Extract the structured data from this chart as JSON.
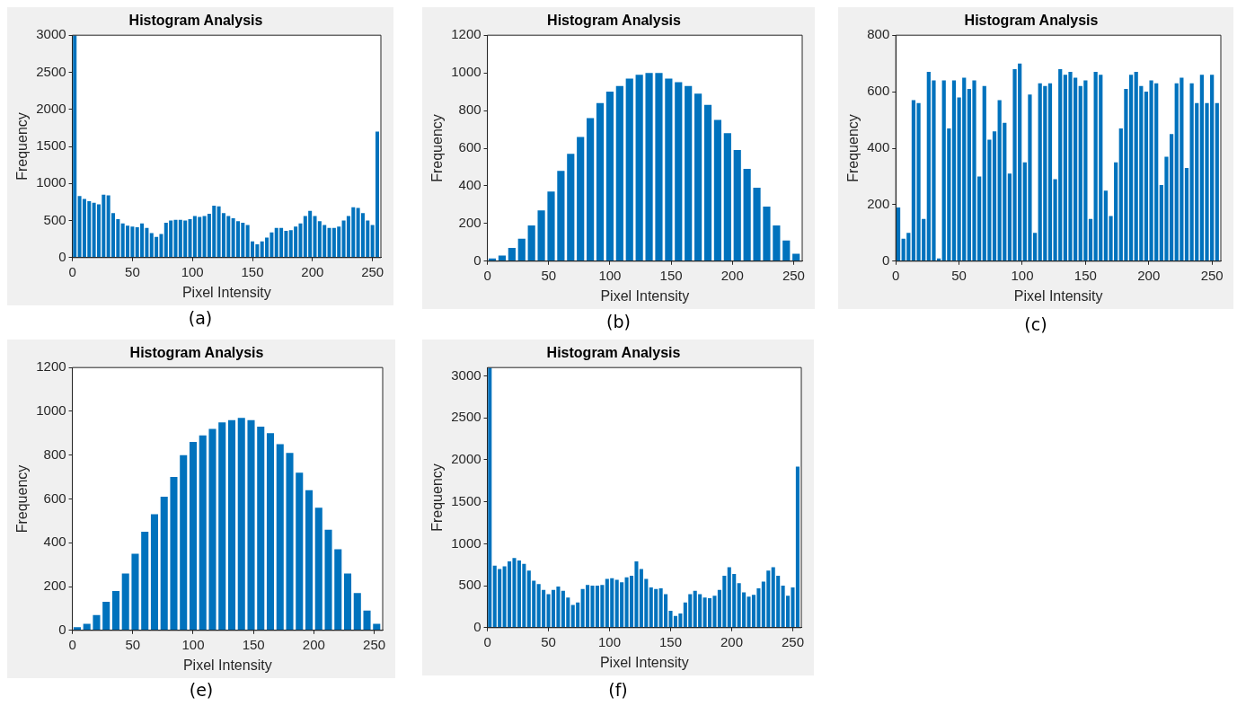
{
  "chart_data": [
    {
      "type": "histogram",
      "title": "Histogram Analysis",
      "xlabel": "Pixel Intensity",
      "ylabel": "Frequency",
      "annotations": [
        "(a)"
      ],
      "color": "#0072bd",
      "xlim": [
        0,
        257
      ],
      "ylim": [
        0,
        3000
      ],
      "xticks": [
        0,
        50,
        100,
        150,
        200,
        250
      ],
      "yticks": [
        0,
        500,
        1000,
        1500,
        2000,
        2500,
        3000
      ],
      "bins": [
        0,
        4,
        8,
        12,
        16,
        20,
        24,
        28,
        32,
        36,
        40,
        44,
        48,
        52,
        56,
        60,
        64,
        68,
        72,
        76,
        80,
        84,
        88,
        92,
        96,
        100,
        104,
        108,
        112,
        116,
        120,
        124,
        128,
        132,
        136,
        140,
        144,
        148,
        152,
        156,
        160,
        164,
        168,
        172,
        176,
        180,
        184,
        188,
        192,
        196,
        200,
        204,
        208,
        212,
        216,
        220,
        224,
        228,
        232,
        236,
        240,
        244,
        248,
        252,
        256
      ],
      "values": [
        3000,
        830,
        790,
        760,
        740,
        720,
        850,
        840,
        600,
        520,
        460,
        430,
        420,
        410,
        460,
        400,
        330,
        280,
        320,
        470,
        500,
        510,
        510,
        500,
        520,
        560,
        550,
        560,
        590,
        700,
        690,
        600,
        560,
        530,
        490,
        470,
        440,
        220,
        180,
        220,
        270,
        340,
        400,
        400,
        360,
        370,
        420,
        460,
        560,
        630,
        560,
        490,
        440,
        400,
        400,
        420,
        500,
        560,
        680,
        670,
        600,
        500,
        440,
        1700
      ]
    },
    {
      "type": "histogram",
      "title": "Histogram Analysis",
      "xlabel": "Pixel Intensity",
      "ylabel": "Frequency",
      "annotations": [
        "(b)"
      ],
      "color": "#0072bd",
      "xlim": [
        0,
        257
      ],
      "ylim": [
        0,
        1200
      ],
      "xticks": [
        0,
        50,
        100,
        150,
        200,
        250
      ],
      "yticks": [
        0,
        200,
        400,
        600,
        800,
        1000,
        1200
      ],
      "bins": [
        0,
        8,
        16,
        24,
        32,
        40,
        48,
        56,
        64,
        72,
        80,
        88,
        96,
        104,
        112,
        120,
        128,
        136,
        144,
        152,
        160,
        168,
        176,
        184,
        192,
        200,
        208,
        216,
        224,
        232,
        240,
        248,
        256
      ],
      "values": [
        15,
        30,
        70,
        120,
        190,
        270,
        370,
        480,
        570,
        660,
        760,
        840,
        900,
        930,
        970,
        990,
        1000,
        1000,
        970,
        950,
        930,
        890,
        830,
        750,
        680,
        590,
        490,
        390,
        290,
        190,
        110,
        40
      ]
    },
    {
      "type": "histogram",
      "title": "Histogram Analysis",
      "xlabel": "Pixel Intensity",
      "ylabel": "Frequency",
      "annotations": [
        "(c)"
      ],
      "color": "#0072bd",
      "xlim": [
        0,
        257
      ],
      "ylim": [
        0,
        800
      ],
      "xticks": [
        0,
        50,
        100,
        150,
        200,
        250
      ],
      "yticks": [
        0,
        200,
        400,
        600,
        800
      ],
      "bins": [
        0,
        4,
        8,
        12,
        16,
        20,
        24,
        28,
        32,
        36,
        40,
        44,
        48,
        52,
        56,
        60,
        64,
        68,
        72,
        76,
        80,
        84,
        88,
        92,
        96,
        100,
        104,
        108,
        112,
        116,
        120,
        124,
        128,
        132,
        136,
        140,
        144,
        148,
        152,
        156,
        160,
        164,
        168,
        172,
        176,
        180,
        184,
        188,
        192,
        196,
        200,
        204,
        208,
        212,
        216,
        220,
        224,
        228,
        232,
        236,
        240,
        244,
        248,
        252,
        256
      ],
      "values": [
        190,
        80,
        100,
        570,
        560,
        150,
        670,
        640,
        10,
        640,
        470,
        640,
        580,
        650,
        610,
        640,
        300,
        620,
        430,
        460,
        570,
        490,
        310,
        680,
        700,
        350,
        590,
        100,
        630,
        620,
        630,
        290,
        680,
        660,
        670,
        650,
        620,
        640,
        150,
        670,
        660,
        250,
        160,
        350,
        470,
        610,
        660,
        670,
        620,
        600,
        640,
        630,
        270,
        370,
        450,
        630,
        650,
        330,
        630,
        560,
        660,
        560,
        660,
        560
      ]
    },
    {
      "type": "histogram",
      "title": "Histogram Analysis",
      "xlabel": "Pixel Intensity",
      "ylabel": "Frequency",
      "annotations": [
        "(e)"
      ],
      "color": "#0072bd",
      "xlim": [
        0,
        257
      ],
      "ylim": [
        0,
        1200
      ],
      "xticks": [
        0,
        50,
        100,
        150,
        200,
        250
      ],
      "yticks": [
        0,
        200,
        400,
        600,
        800,
        1000,
        1200
      ],
      "bins": [
        0,
        8,
        16,
        24,
        32,
        40,
        48,
        56,
        64,
        72,
        80,
        88,
        96,
        104,
        112,
        120,
        128,
        136,
        144,
        152,
        160,
        168,
        176,
        184,
        192,
        200,
        208,
        216,
        224,
        232,
        240,
        248,
        256
      ],
      "values": [
        15,
        30,
        70,
        130,
        180,
        260,
        350,
        450,
        530,
        610,
        700,
        800,
        860,
        890,
        920,
        950,
        960,
        970,
        960,
        930,
        900,
        850,
        810,
        720,
        640,
        560,
        460,
        370,
        260,
        170,
        90,
        30
      ]
    },
    {
      "type": "histogram",
      "title": "Histogram Analysis",
      "xlabel": "Pixel Intensity",
      "ylabel": "Frequency",
      "annotations": [
        "(f)"
      ],
      "color": "#0072bd",
      "xlim": [
        0,
        257
      ],
      "ylim": [
        0,
        3100
      ],
      "xticks": [
        0,
        50,
        100,
        150,
        200,
        250
      ],
      "yticks": [
        0,
        500,
        1000,
        1500,
        2000,
        2500,
        3000
      ],
      "bins": [
        0,
        4,
        8,
        12,
        16,
        20,
        24,
        28,
        32,
        36,
        40,
        44,
        48,
        52,
        56,
        60,
        64,
        68,
        72,
        76,
        80,
        84,
        88,
        92,
        96,
        100,
        104,
        108,
        112,
        116,
        120,
        124,
        128,
        132,
        136,
        140,
        144,
        148,
        152,
        156,
        160,
        164,
        168,
        172,
        176,
        180,
        184,
        188,
        192,
        196,
        200,
        204,
        208,
        212,
        216,
        220,
        224,
        228,
        232,
        236,
        240,
        244,
        248,
        252,
        256
      ],
      "values": [
        3100,
        740,
        700,
        730,
        790,
        830,
        800,
        760,
        680,
        560,
        520,
        450,
        400,
        450,
        490,
        440,
        360,
        270,
        300,
        460,
        510,
        500,
        500,
        510,
        580,
        590,
        570,
        540,
        600,
        620,
        790,
        700,
        580,
        480,
        460,
        470,
        400,
        200,
        140,
        170,
        300,
        400,
        440,
        400,
        360,
        350,
        380,
        450,
        620,
        720,
        640,
        530,
        420,
        370,
        390,
        470,
        550,
        680,
        720,
        620,
        500,
        380,
        480,
        1920
      ]
    }
  ]
}
